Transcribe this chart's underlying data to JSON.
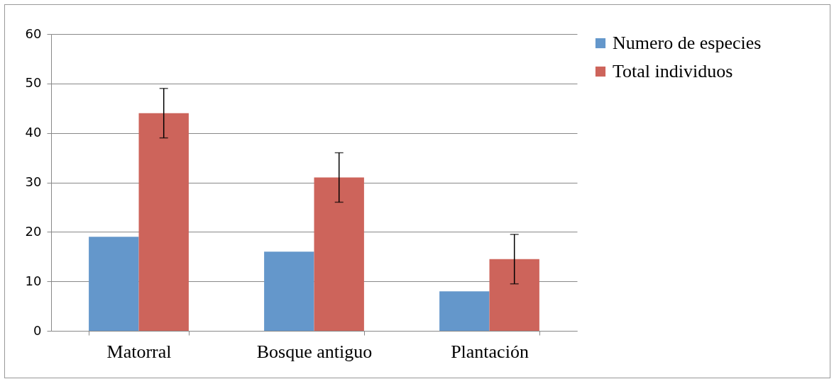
{
  "chart_data": {
    "type": "bar",
    "categories": [
      "Matorral",
      "Bosque antiguo",
      "Plantación"
    ],
    "series": [
      {
        "name": "Numero de especies",
        "color": "#6497cb",
        "values": [
          19,
          16,
          8
        ]
      },
      {
        "name": "Total individuos",
        "color": "#cd645b",
        "values": [
          44,
          31,
          14.5
        ],
        "errors": [
          5,
          5,
          5
        ]
      }
    ],
    "ylim": [
      0,
      60
    ],
    "yticks": [
      0,
      10,
      20,
      30,
      40,
      50,
      60
    ],
    "grid": "y",
    "legend": "right"
  }
}
